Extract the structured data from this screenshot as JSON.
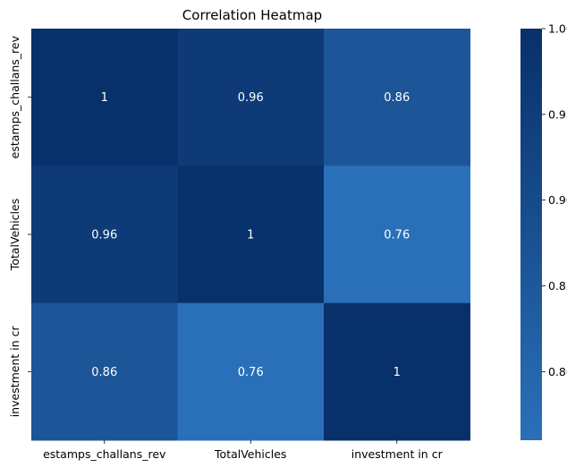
{
  "chart_data": {
    "type": "heatmap",
    "title": "Correlation Heatmap",
    "x_categories": [
      "estamps_challans_rev",
      "TotalVehicles",
      "investment in cr"
    ],
    "y_categories": [
      "estamps_challans_rev",
      "TotalVehicles",
      "investment in cr"
    ],
    "values": [
      [
        1.0,
        0.96,
        0.86
      ],
      [
        0.96,
        1.0,
        0.76
      ],
      [
        0.86,
        0.76,
        1.0
      ]
    ],
    "annotations": [
      [
        "1",
        "0.96",
        "0.86"
      ],
      [
        "0.96",
        "1",
        "0.76"
      ],
      [
        "0.86",
        "0.76",
        "1"
      ]
    ],
    "colormap": "Blues",
    "colorbar": {
      "vmin": 0.76,
      "vmax": 1.0,
      "ticks": [
        0.8,
        0.85,
        0.9,
        0.95,
        1.0
      ],
      "tick_labels": [
        "0.80",
        "0.85",
        "0.90",
        "0.95",
        "1.00"
      ]
    },
    "colors": {
      "low": "#2a70b8",
      "high": "#08306b",
      "annotation_text": "#ffffff"
    }
  }
}
